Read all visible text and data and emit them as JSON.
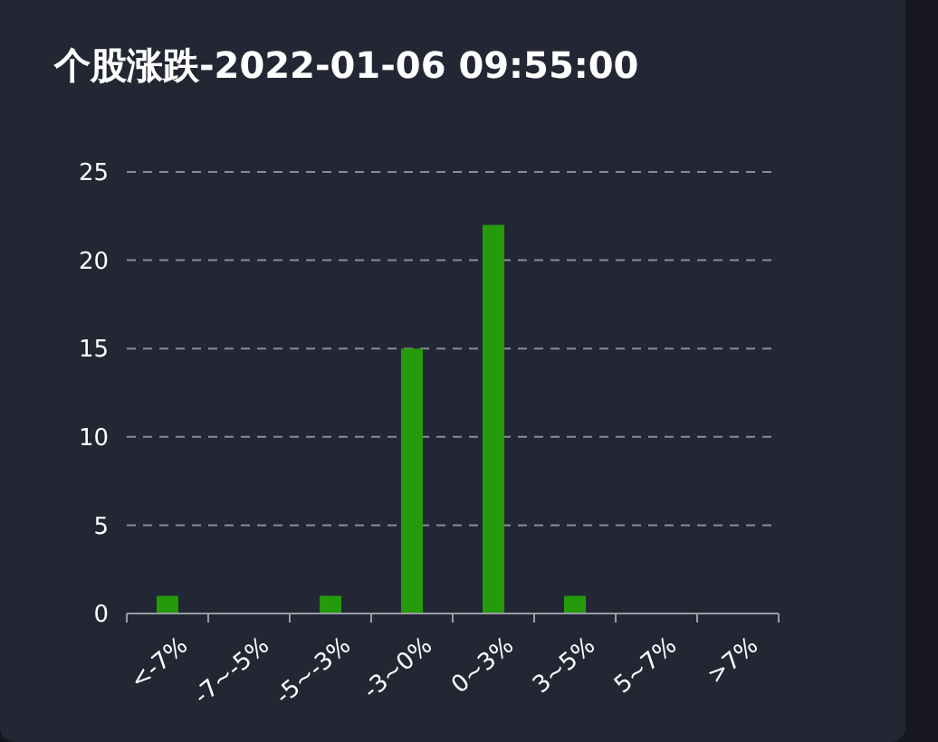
{
  "chart_data": {
    "type": "bar",
    "title": "个股涨跌-2022-01-06 09:55:00",
    "categories": [
      "<-7%",
      "-7~-5%",
      "-5~-3%",
      "-3~0%",
      "0~3%",
      "3~5%",
      "5~7%",
      ">7%"
    ],
    "values": [
      1,
      0,
      1,
      15,
      22,
      1,
      0,
      0
    ],
    "color": "#259a0b",
    "ylim": [
      0,
      25
    ],
    "yticks": [
      0,
      5,
      10,
      15,
      20,
      25
    ],
    "grid": "y"
  }
}
